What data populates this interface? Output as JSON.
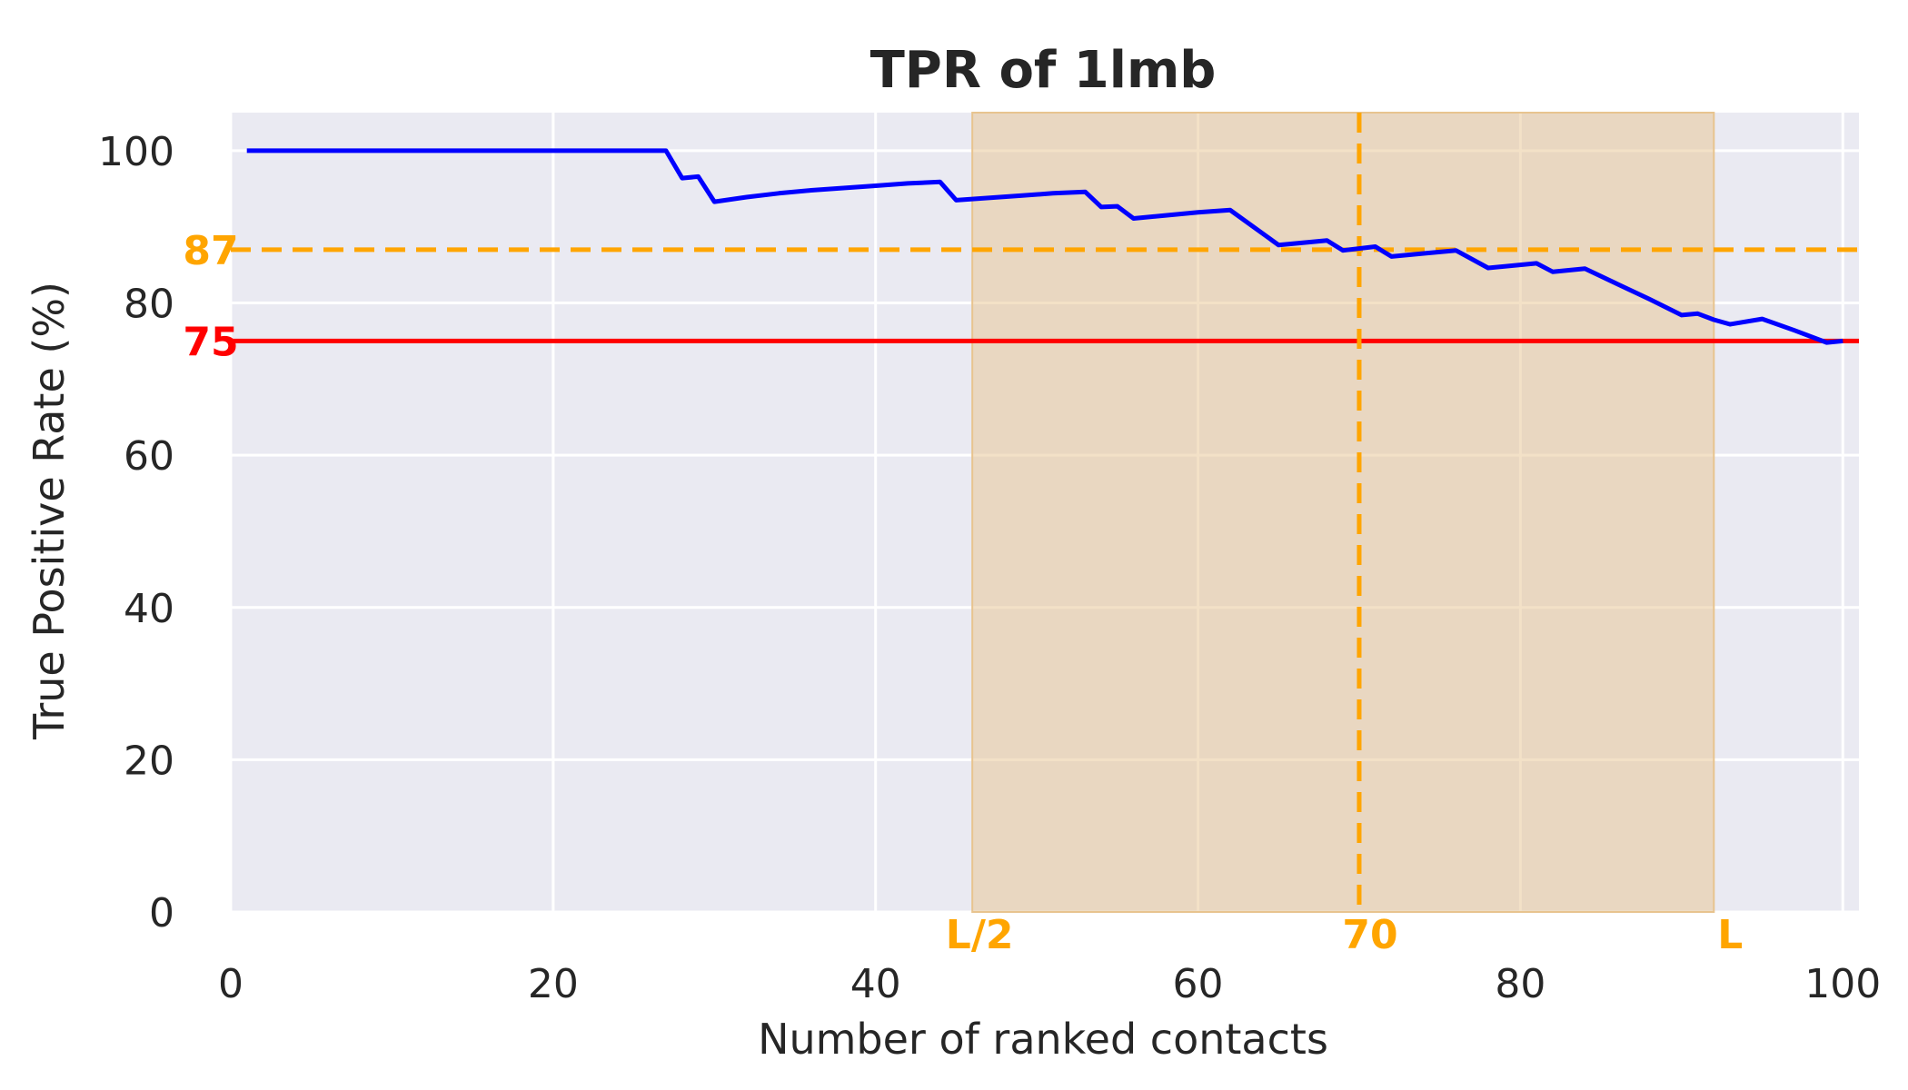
{
  "chart_data": {
    "type": "line",
    "title": "TPR of 1lmb",
    "xlabel": "Number of ranked contacts",
    "ylabel": "True Positive Rate (%)",
    "xlim": [
      0,
      101
    ],
    "ylim": [
      0,
      105
    ],
    "xticks": [
      0,
      20,
      40,
      60,
      80,
      100
    ],
    "yticks": [
      0,
      20,
      40,
      60,
      80,
      100
    ],
    "grid": true,
    "series": [
      {
        "color": "#0000ff",
        "x": [
          1,
          2,
          4,
          6,
          8,
          10,
          12,
          14,
          16,
          18,
          20,
          22,
          24,
          26,
          27,
          28,
          29,
          30,
          32,
          34,
          36,
          38,
          40,
          42,
          44,
          45,
          47,
          49,
          51,
          53,
          54,
          55,
          56,
          58,
          60,
          62,
          65,
          68,
          69,
          71,
          72,
          74,
          76,
          78,
          81,
          82,
          84,
          86,
          88,
          90,
          91,
          92,
          93,
          95,
          97,
          99,
          100
        ],
        "y": [
          100,
          100,
          100,
          100,
          100,
          100,
          100,
          100,
          100,
          100,
          100,
          100,
          100,
          100,
          100,
          96.4,
          96.6,
          93.3,
          93.9,
          94.4,
          94.8,
          95.1,
          95.4,
          95.7,
          95.9,
          93.5,
          93.8,
          94.1,
          94.4,
          94.6,
          92.6,
          92.7,
          91.1,
          91.5,
          91.9,
          92.2,
          87.6,
          88.2,
          86.9,
          87.4,
          86.1,
          86.5,
          86.9,
          84.6,
          85.2,
          84.1,
          84.5,
          82.5,
          80.5,
          78.4,
          78.6,
          77.8,
          77.2,
          77.9,
          76.4,
          74.8,
          75.0
        ]
      }
    ],
    "reference_lines": [
      {
        "orientation": "horizontal",
        "value": 87,
        "label": "87",
        "color": "#ffa500",
        "style": "dashed"
      },
      {
        "orientation": "horizontal",
        "value": 75,
        "label": "75",
        "color": "#ff0000",
        "style": "solid"
      },
      {
        "orientation": "vertical",
        "value": 70,
        "label": "70",
        "color": "#ffa500",
        "style": "dashed"
      }
    ],
    "shaded_region": {
      "x_start": 46,
      "x_end": 92,
      "start_label": "L/2",
      "end_label": "L",
      "color": "#e8c48f"
    },
    "colors": {
      "plot_background": "#eaeaf2",
      "grid": "#ffffff",
      "text": "#262626",
      "accent": "#ffa500",
      "threshold": "#ff0000"
    }
  }
}
